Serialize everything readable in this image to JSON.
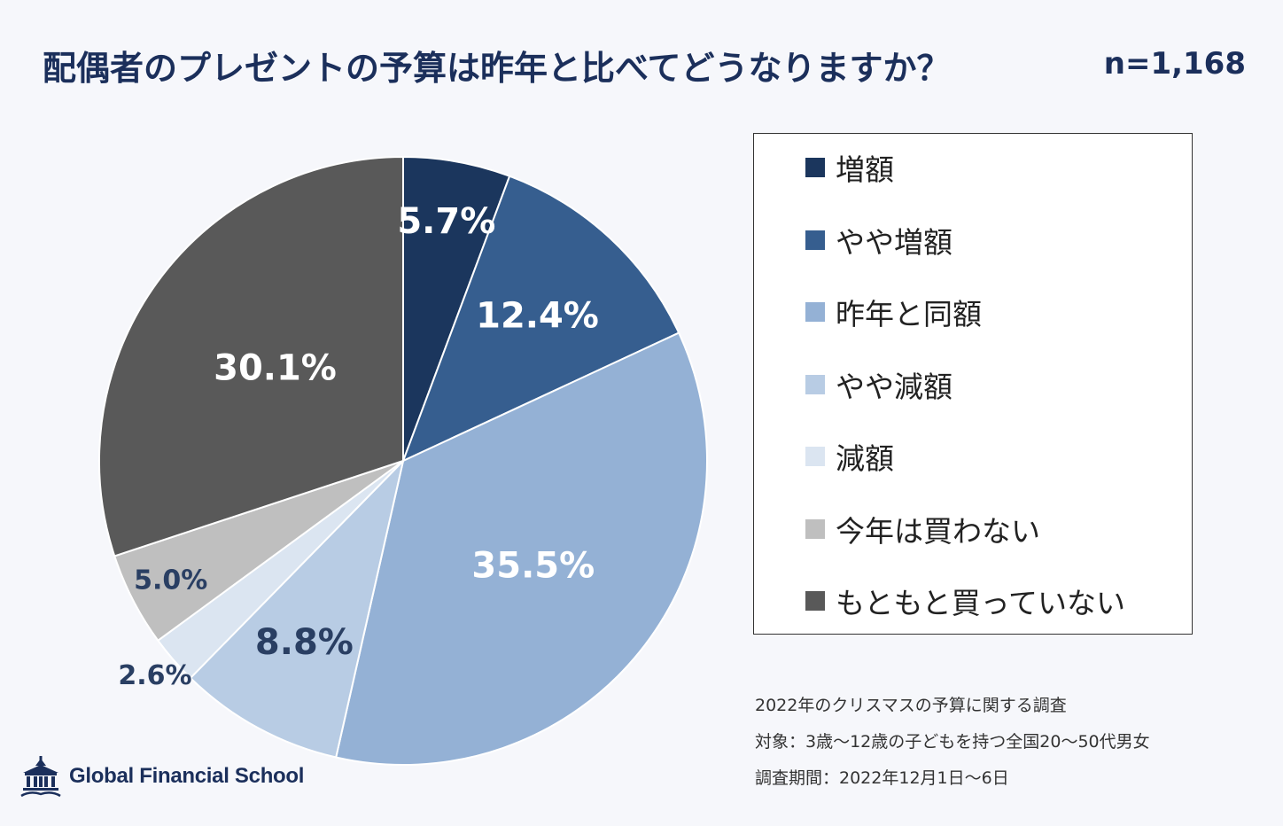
{
  "chart_data": {
    "type": "pie",
    "title": "配偶者のプレゼントの予算は昨年と比べてどうなりますか？",
    "sample_size": "n=1,168",
    "start_angle_deg": 0,
    "direction": "clockwise",
    "slices": [
      {
        "name": "増額",
        "value": 5.7,
        "label": "5.7%",
        "color": "#1b365d",
        "label_color": "#ffffff"
      },
      {
        "name": "やや増額",
        "value": 12.4,
        "label": "12.4%",
        "color": "#365e8f",
        "label_color": "#ffffff"
      },
      {
        "name": "昨年と同額",
        "value": 35.5,
        "label": "35.5%",
        "color": "#94b1d5",
        "label_color": "#ffffff"
      },
      {
        "name": "やや減額",
        "value": 8.8,
        "label": "8.8%",
        "color": "#b8cce4",
        "label_color": "#2a3f63"
      },
      {
        "name": "減額",
        "value": 2.6,
        "label": "2.6%",
        "color": "#dbe5f1",
        "label_color": "#2a3f63"
      },
      {
        "name": "今年は買わない",
        "value": 5.0,
        "label": "5.0%",
        "color": "#bfbfbf",
        "label_color": "#2a3f63"
      },
      {
        "name": "もともと買っていない",
        "value": 30.1,
        "label": "30.1%",
        "color": "#595959",
        "label_color": "#ffffff"
      }
    ],
    "legend_position": "right"
  },
  "footnotes": [
    "2022年のクリスマスの予算に関する調査",
    "対象：3歳～12歳の子どもを持つ全国20～50代男女",
    "調査期間：2022年12月1日～6日"
  ],
  "brand": {
    "name": "Global Financial School",
    "icon": "school-building-icon"
  }
}
